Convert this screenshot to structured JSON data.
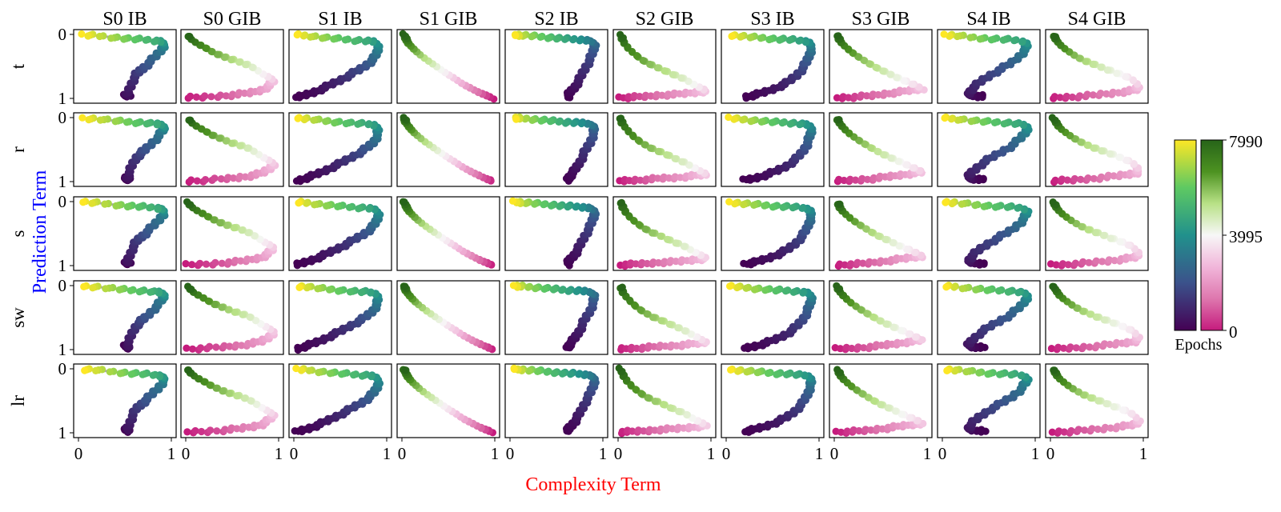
{
  "chart_data": {
    "type": "scatter",
    "xlabel": "Complexity Term",
    "ylabel": "Prediction Term",
    "xlabel_color": "#ff0000",
    "ylabel_color": "#0000ff",
    "xlim": [
      0,
      1
    ],
    "ylim": [
      0,
      1
    ],
    "x_ticks": [
      "0",
      "1"
    ],
    "y_ticks": [
      "0",
      "1"
    ],
    "grid": false,
    "columns": [
      "S0 IB",
      "S0 GIB",
      "S1 IB",
      "S1 GIB",
      "S2 IB",
      "S2 GIB",
      "S3 IB",
      "S3 GIB",
      "S4 IB",
      "S4 GIB"
    ],
    "rows": [
      "t",
      "r",
      "s",
      "sw",
      "lr"
    ],
    "colorbar": {
      "label": "Epochs",
      "min": 0,
      "mid": 3995,
      "max": 7990,
      "tick_labels": [
        "0",
        "3995",
        "7990"
      ],
      "ib_colormap": [
        "#440154",
        "#3b528b",
        "#21918c",
        "#5ec962",
        "#fde725"
      ],
      "gib_colormap": [
        "#c51b7d",
        "#de77ae",
        "#f1b6da",
        "#f7f7f7",
        "#b8e186",
        "#4d9221",
        "#276419"
      ]
    },
    "panels": [
      [
        {
          "name": "S0 IB",
          "kind": "IB",
          "points": [
            [
              0.52,
              0.02
            ],
            [
              0.5,
              0.05
            ],
            [
              0.55,
              0.06
            ],
            [
              0.52,
              0.04
            ],
            [
              0.55,
              0.15
            ],
            [
              0.58,
              0.26
            ],
            [
              0.62,
              0.37
            ],
            [
              0.67,
              0.44
            ],
            [
              0.72,
              0.5
            ],
            [
              0.79,
              0.6
            ],
            [
              0.86,
              0.7
            ],
            [
              0.91,
              0.8
            ],
            [
              0.92,
              0.85
            ],
            [
              0.9,
              0.89
            ],
            [
              0.84,
              0.9
            ],
            [
              0.7,
              0.92
            ],
            [
              0.55,
              0.93
            ],
            [
              0.4,
              0.95
            ],
            [
              0.2,
              0.98
            ],
            [
              0.05,
              0.99
            ]
          ]
        },
        {
          "name": "S0 GIB",
          "kind": "GIB",
          "points": [
            [
              0.02,
              0.01
            ],
            [
              0.2,
              0.02
            ],
            [
              0.4,
              0.04
            ],
            [
              0.55,
              0.06
            ],
            [
              0.7,
              0.09
            ],
            [
              0.82,
              0.13
            ],
            [
              0.9,
              0.2
            ],
            [
              0.95,
              0.28
            ],
            [
              0.9,
              0.33
            ],
            [
              0.83,
              0.38
            ],
            [
              0.76,
              0.45
            ],
            [
              0.68,
              0.52
            ],
            [
              0.58,
              0.57
            ],
            [
              0.47,
              0.62
            ],
            [
              0.38,
              0.67
            ],
            [
              0.28,
              0.73
            ],
            [
              0.2,
              0.8
            ],
            [
              0.12,
              0.86
            ],
            [
              0.06,
              0.92
            ],
            [
              0.03,
              0.98
            ]
          ]
        }
      ],
      [
        {
          "name": "S1 IB",
          "kind": "IB",
          "points": [
            [
              0.03,
              0.01
            ],
            [
              0.12,
              0.05
            ],
            [
              0.22,
              0.1
            ],
            [
              0.32,
              0.16
            ],
            [
              0.42,
              0.23
            ],
            [
              0.52,
              0.3
            ],
            [
              0.62,
              0.38
            ],
            [
              0.72,
              0.46
            ],
            [
              0.8,
              0.54
            ],
            [
              0.86,
              0.62
            ],
            [
              0.9,
              0.72
            ],
            [
              0.91,
              0.82
            ],
            [
              0.88,
              0.88
            ],
            [
              0.8,
              0.9
            ],
            [
              0.65,
              0.91
            ],
            [
              0.48,
              0.93
            ],
            [
              0.32,
              0.95
            ],
            [
              0.15,
              0.98
            ],
            [
              0.04,
              0.99
            ]
          ]
        },
        {
          "name": "S1 GIB",
          "kind": "GIB",
          "points": [
            [
              0.97,
              0.01
            ],
            [
              0.9,
              0.05
            ],
            [
              0.82,
              0.1
            ],
            [
              0.74,
              0.16
            ],
            [
              0.66,
              0.22
            ],
            [
              0.58,
              0.3
            ],
            [
              0.5,
              0.37
            ],
            [
              0.42,
              0.45
            ],
            [
              0.34,
              0.53
            ],
            [
              0.26,
              0.61
            ],
            [
              0.18,
              0.7
            ],
            [
              0.12,
              0.78
            ],
            [
              0.07,
              0.86
            ],
            [
              0.04,
              0.93
            ],
            [
              0.03,
              0.99
            ]
          ]
        }
      ],
      [
        {
          "name": "S2 IB",
          "kind": "IB",
          "points": [
            [
              0.62,
              0.02
            ],
            [
              0.64,
              0.08
            ],
            [
              0.7,
              0.18
            ],
            [
              0.75,
              0.3
            ],
            [
              0.8,
              0.45
            ],
            [
              0.86,
              0.6
            ],
            [
              0.9,
              0.75
            ],
            [
              0.91,
              0.86
            ],
            [
              0.86,
              0.9
            ],
            [
              0.75,
              0.92
            ],
            [
              0.6,
              0.93
            ],
            [
              0.45,
              0.95
            ],
            [
              0.28,
              0.97
            ],
            [
              0.12,
              0.99
            ],
            [
              0.05,
              0.99
            ]
          ]
        },
        {
          "name": "S2 GIB",
          "kind": "GIB",
          "points": [
            [
              0.02,
              0.01
            ],
            [
              0.15,
              0.02
            ],
            [
              0.3,
              0.03
            ],
            [
              0.45,
              0.05
            ],
            [
              0.6,
              0.06
            ],
            [
              0.75,
              0.08
            ],
            [
              0.88,
              0.1
            ],
            [
              0.95,
              0.12
            ],
            [
              0.88,
              0.17
            ],
            [
              0.8,
              0.23
            ],
            [
              0.72,
              0.3
            ],
            [
              0.6,
              0.37
            ],
            [
              0.48,
              0.45
            ],
            [
              0.36,
              0.52
            ],
            [
              0.26,
              0.6
            ],
            [
              0.17,
              0.7
            ],
            [
              0.1,
              0.8
            ],
            [
              0.05,
              0.9
            ],
            [
              0.03,
              0.99
            ]
          ]
        }
      ],
      [
        {
          "name": "S3 IB",
          "kind": "IB",
          "points": [
            [
              0.2,
              0.02
            ],
            [
              0.3,
              0.05
            ],
            [
              0.42,
              0.1
            ],
            [
              0.55,
              0.17
            ],
            [
              0.66,
              0.25
            ],
            [
              0.75,
              0.35
            ],
            [
              0.82,
              0.46
            ],
            [
              0.87,
              0.58
            ],
            [
              0.9,
              0.7
            ],
            [
              0.92,
              0.8
            ],
            [
              0.9,
              0.88
            ],
            [
              0.83,
              0.9
            ],
            [
              0.68,
              0.92
            ],
            [
              0.52,
              0.93
            ],
            [
              0.35,
              0.95
            ],
            [
              0.18,
              0.97
            ],
            [
              0.04,
              0.99
            ]
          ]
        },
        {
          "name": "S3 GIB",
          "kind": "GIB",
          "points": [
            [
              0.03,
              0.01
            ],
            [
              0.2,
              0.02
            ],
            [
              0.38,
              0.04
            ],
            [
              0.55,
              0.07
            ],
            [
              0.7,
              0.1
            ],
            [
              0.85,
              0.13
            ],
            [
              0.95,
              0.15
            ],
            [
              0.85,
              0.22
            ],
            [
              0.72,
              0.3
            ],
            [
              0.6,
              0.38
            ],
            [
              0.48,
              0.46
            ],
            [
              0.37,
              0.55
            ],
            [
              0.27,
              0.64
            ],
            [
              0.18,
              0.73
            ],
            [
              0.11,
              0.82
            ],
            [
              0.06,
              0.9
            ],
            [
              0.04,
              0.98
            ]
          ]
        }
      ],
      [
        {
          "name": "S4 IB",
          "kind": "IB",
          "points": [
            [
              0.45,
              0.04
            ],
            [
              0.38,
              0.03
            ],
            [
              0.3,
              0.04
            ],
            [
              0.28,
              0.07
            ],
            [
              0.32,
              0.15
            ],
            [
              0.4,
              0.25
            ],
            [
              0.5,
              0.35
            ],
            [
              0.62,
              0.45
            ],
            [
              0.74,
              0.55
            ],
            [
              0.84,
              0.67
            ],
            [
              0.9,
              0.78
            ],
            [
              0.92,
              0.86
            ],
            [
              0.85,
              0.9
            ],
            [
              0.7,
              0.92
            ],
            [
              0.52,
              0.93
            ],
            [
              0.35,
              0.95
            ],
            [
              0.15,
              0.98
            ],
            [
              0.03,
              0.99
            ]
          ]
        },
        {
          "name": "S4 GIB",
          "kind": "GIB",
          "points": [
            [
              0.02,
              0.01
            ],
            [
              0.2,
              0.02
            ],
            [
              0.4,
              0.04
            ],
            [
              0.6,
              0.07
            ],
            [
              0.78,
              0.1
            ],
            [
              0.92,
              0.13
            ],
            [
              0.95,
              0.2
            ],
            [
              0.88,
              0.3
            ],
            [
              0.75,
              0.38
            ],
            [
              0.6,
              0.46
            ],
            [
              0.47,
              0.53
            ],
            [
              0.35,
              0.6
            ],
            [
              0.25,
              0.68
            ],
            [
              0.17,
              0.76
            ],
            [
              0.1,
              0.84
            ],
            [
              0.06,
              0.92
            ],
            [
              0.04,
              0.98
            ]
          ]
        }
      ]
    ]
  }
}
